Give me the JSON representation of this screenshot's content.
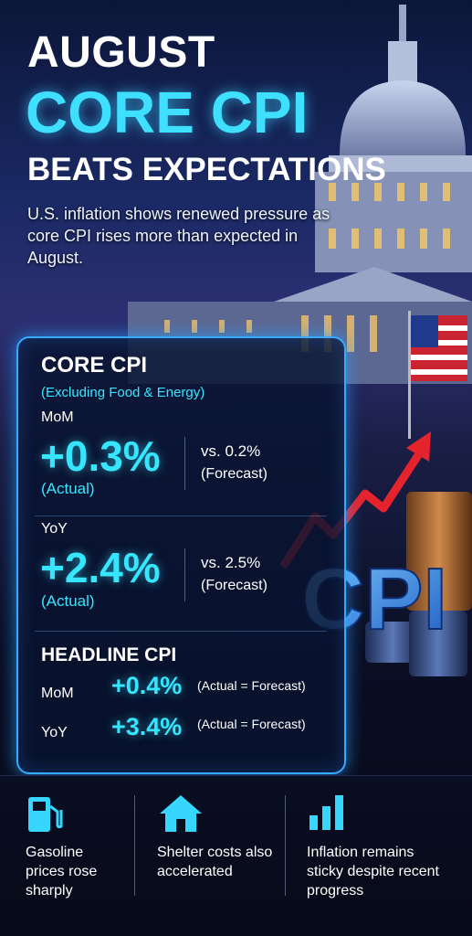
{
  "header": {
    "line1": "AUGUST",
    "line2": "CORE CPI",
    "line3": "BEATS EXPECTATIONS",
    "subtitle": "U.S. inflation shows renewed pressure as core CPI rises more than expected in August."
  },
  "core_panel": {
    "title": "CORE CPI",
    "subtitle": "(Excluding Food & Energy)",
    "mom": {
      "label": "MoM",
      "actual": "+0.3%",
      "actual_note": "(Actual)",
      "forecast": "vs. 0.2%",
      "forecast_note": "(Forecast)"
    },
    "yoy": {
      "label": "YoY",
      "actual": "+2.4%",
      "actual_note": "(Actual)",
      "forecast": "vs. 2.5%",
      "forecast_note": "(Forecast)"
    }
  },
  "headline_panel": {
    "title": "HEADLINE CPI",
    "rows": [
      {
        "label": "MoM",
        "value": "+0.4%",
        "note": "(Actual = Forecast)"
      },
      {
        "label": "YoY",
        "value": "+3.4%",
        "note": "(Actual = Forecast)"
      }
    ]
  },
  "graphic_label": "CPI",
  "footer": {
    "items": [
      "Gasoline prices rose sharply",
      "Shelter costs also accelerated",
      "Inflation remains sticky despite recent progress"
    ]
  }
}
